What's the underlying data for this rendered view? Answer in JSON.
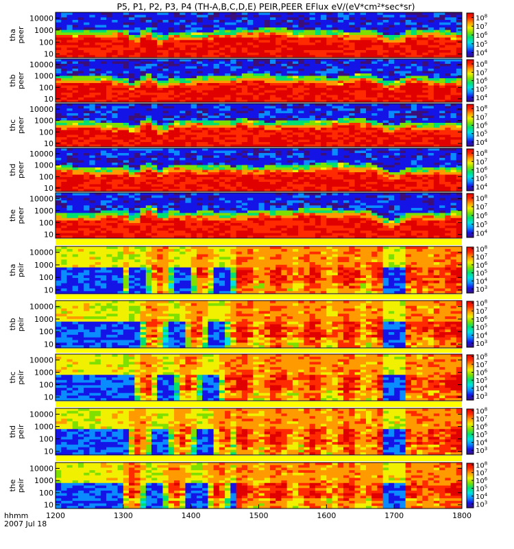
{
  "chart_data": {
    "type": "heatmap",
    "title": "P5, P1, P2, P3, P4 (TH-A,B,C,D,E) PEIR,PEER EFlux eV/(eV*cm²*sec*sr)",
    "x_axis": {
      "label_line1": "hhmm",
      "label_line2": "2007 Jul 18",
      "ticks": [
        "1200",
        "1300",
        "1400",
        "1500",
        "1600",
        "1700",
        "1800"
      ],
      "range": [
        "1200",
        "1800"
      ]
    },
    "y_scale": "log",
    "energy_range_eV": [
      5,
      30000
    ],
    "panels": [
      {
        "probe": "tha",
        "species": "peer",
        "yticks": [
          "10",
          "100",
          "1000",
          "10000"
        ],
        "cticks": [
          {
            "base": "10",
            "exp": "4"
          },
          {
            "base": "10",
            "exp": "5"
          },
          {
            "base": "10",
            "exp": "6"
          },
          {
            "base": "10",
            "exp": "7"
          },
          {
            "base": "10",
            "exp": "8"
          }
        ],
        "crange_exp": [
          3.5,
          8.5
        ]
      },
      {
        "probe": "thb",
        "species": "peer",
        "yticks": [
          "10",
          "100",
          "1000",
          "10000"
        ],
        "cticks": [
          {
            "base": "10",
            "exp": "4"
          },
          {
            "base": "10",
            "exp": "5"
          },
          {
            "base": "10",
            "exp": "6"
          },
          {
            "base": "10",
            "exp": "7"
          },
          {
            "base": "10",
            "exp": "8"
          }
        ],
        "crange_exp": [
          3.5,
          8.5
        ]
      },
      {
        "probe": "thc",
        "species": "peer",
        "yticks": [
          "10",
          "100",
          "1000",
          "10000"
        ],
        "cticks": [
          {
            "base": "10",
            "exp": "4"
          },
          {
            "base": "10",
            "exp": "5"
          },
          {
            "base": "10",
            "exp": "6"
          },
          {
            "base": "10",
            "exp": "7"
          },
          {
            "base": "10",
            "exp": "8"
          }
        ],
        "crange_exp": [
          3.5,
          8.5
        ]
      },
      {
        "probe": "thd",
        "species": "peer",
        "yticks": [
          "10",
          "100",
          "1000",
          "10000"
        ],
        "cticks": [
          {
            "base": "10",
            "exp": "4"
          },
          {
            "base": "10",
            "exp": "5"
          },
          {
            "base": "10",
            "exp": "6"
          },
          {
            "base": "10",
            "exp": "7"
          },
          {
            "base": "10",
            "exp": "8"
          }
        ],
        "crange_exp": [
          3.5,
          8.5
        ]
      },
      {
        "probe": "the",
        "species": "peer",
        "yticks": [
          "10",
          "100",
          "1000",
          "10000"
        ],
        "cticks": [
          {
            "base": "10",
            "exp": "4"
          },
          {
            "base": "10",
            "exp": "5"
          },
          {
            "base": "10",
            "exp": "6"
          },
          {
            "base": "10",
            "exp": "7"
          },
          {
            "base": "10",
            "exp": "8"
          }
        ],
        "crange_exp": [
          3.5,
          8.5
        ]
      },
      {
        "probe": "tha",
        "species": "peir",
        "yticks": [
          "10",
          "100",
          "1000",
          "10000"
        ],
        "cticks": [
          {
            "base": "10",
            "exp": "3"
          },
          {
            "base": "10",
            "exp": "4"
          },
          {
            "base": "10",
            "exp": "5"
          },
          {
            "base": "10",
            "exp": "6"
          },
          {
            "base": "10",
            "exp": "7"
          },
          {
            "base": "10",
            "exp": "8"
          }
        ],
        "crange_exp": [
          2.5,
          8.2
        ]
      },
      {
        "probe": "thb",
        "species": "peir",
        "yticks": [
          "10",
          "100",
          "1000",
          "10000"
        ],
        "cticks": [
          {
            "base": "10",
            "exp": "3"
          },
          {
            "base": "10",
            "exp": "4"
          },
          {
            "base": "10",
            "exp": "5"
          },
          {
            "base": "10",
            "exp": "6"
          },
          {
            "base": "10",
            "exp": "7"
          },
          {
            "base": "10",
            "exp": "8"
          }
        ],
        "crange_exp": [
          2.5,
          8.2
        ]
      },
      {
        "probe": "thc",
        "species": "peir",
        "yticks": [
          "10",
          "100",
          "1000",
          "10000"
        ],
        "cticks": [
          {
            "base": "10",
            "exp": "3"
          },
          {
            "base": "10",
            "exp": "4"
          },
          {
            "base": "10",
            "exp": "5"
          },
          {
            "base": "10",
            "exp": "6"
          },
          {
            "base": "10",
            "exp": "7"
          },
          {
            "base": "10",
            "exp": "8"
          }
        ],
        "crange_exp": [
          2.5,
          8.2
        ]
      },
      {
        "probe": "thd",
        "species": "peir",
        "yticks": [
          "10",
          "100",
          "1000",
          "10000"
        ],
        "cticks": [
          {
            "base": "10",
            "exp": "3"
          },
          {
            "base": "10",
            "exp": "4"
          },
          {
            "base": "10",
            "exp": "5"
          },
          {
            "base": "10",
            "exp": "6"
          },
          {
            "base": "10",
            "exp": "7"
          },
          {
            "base": "10",
            "exp": "8"
          }
        ],
        "crange_exp": [
          2.5,
          8.2
        ]
      },
      {
        "probe": "the",
        "species": "peir",
        "yticks": [
          "10",
          "100",
          "1000",
          "10000"
        ],
        "cticks": [
          {
            "base": "10",
            "exp": "3"
          },
          {
            "base": "10",
            "exp": "4"
          },
          {
            "base": "10",
            "exp": "5"
          },
          {
            "base": "10",
            "exp": "6"
          },
          {
            "base": "10",
            "exp": "7"
          },
          {
            "base": "10",
            "exp": "8"
          }
        ],
        "crange_exp": [
          2.5,
          8.2
        ]
      }
    ],
    "colors": {
      "colormap": [
        "#3a0f7a",
        "#1414e6",
        "#0a8cff",
        "#00e0e0",
        "#00e070",
        "#7fe000",
        "#f0f000",
        "#ff9a00",
        "#ff2a00",
        "#e00000"
      ],
      "gap": "#ffff00",
      "frame": "#000000"
    }
  }
}
